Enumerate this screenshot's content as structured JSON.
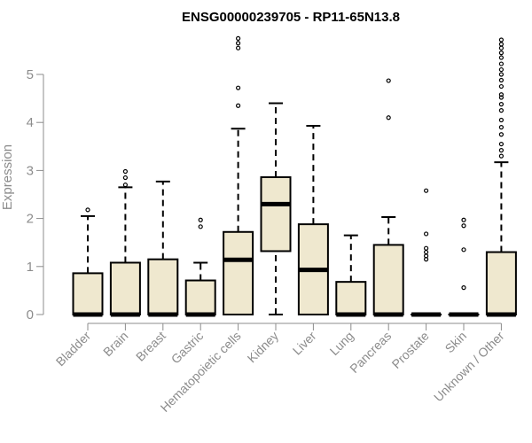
{
  "chart_data": {
    "type": "boxplot",
    "title": "ENSG00000239705 - RP11-65N13.8",
    "xlabel": "",
    "ylabel": "Expression",
    "ylim": [
      0,
      5.8
    ],
    "yticks": [
      0,
      1,
      2,
      3,
      4,
      5
    ],
    "box_fill": "#efe8cf",
    "categories": [
      "Bladder",
      "Brain",
      "Breast",
      "Gastric",
      "Hematopoietic cells",
      "Kidney",
      "Liver",
      "Lung",
      "Pancreas",
      "Prostate",
      "Skin",
      "Unknown / Other"
    ],
    "boxes": [
      {
        "name": "Bladder",
        "whisker_low": 0,
        "q1": 0,
        "median": 0,
        "q3": 0.86,
        "whisker_high": 2.05,
        "outliers": [
          2.18
        ]
      },
      {
        "name": "Brain",
        "whisker_low": 0,
        "q1": 0,
        "median": 0,
        "q3": 1.08,
        "whisker_high": 2.65,
        "outliers": [
          2.7,
          2.85,
          2.98
        ]
      },
      {
        "name": "Breast",
        "whisker_low": 0,
        "q1": 0,
        "median": 0,
        "q3": 1.15,
        "whisker_high": 2.77,
        "outliers": []
      },
      {
        "name": "Gastric",
        "whisker_low": 0,
        "q1": 0,
        "median": 0,
        "q3": 0.71,
        "whisker_high": 1.08,
        "outliers": [
          1.83,
          1.97
        ]
      },
      {
        "name": "Hematopoietic cells",
        "whisker_low": 0,
        "q1": 0,
        "median": 1.14,
        "q3": 1.72,
        "whisker_high": 3.87,
        "outliers": [
          4.35,
          4.72,
          5.55,
          5.65,
          5.75
        ]
      },
      {
        "name": "Kidney",
        "whisker_low": 0,
        "q1": 1.32,
        "median": 2.3,
        "q3": 2.86,
        "whisker_high": 4.4,
        "outliers": []
      },
      {
        "name": "Liver",
        "whisker_low": 0,
        "q1": 0,
        "median": 0.93,
        "q3": 1.88,
        "whisker_high": 3.93,
        "outliers": []
      },
      {
        "name": "Lung",
        "whisker_low": 0,
        "q1": 0,
        "median": 0,
        "q3": 0.68,
        "whisker_high": 1.65,
        "outliers": []
      },
      {
        "name": "Pancreas",
        "whisker_low": 0,
        "q1": 0,
        "median": 0,
        "q3": 1.45,
        "whisker_high": 2.03,
        "outliers": [
          4.1,
          4.87
        ]
      },
      {
        "name": "Prostate",
        "whisker_low": 0,
        "q1": 0,
        "median": 0,
        "q3": 0,
        "whisker_high": 0,
        "outliers": [
          1.15,
          1.22,
          1.3,
          1.38,
          1.68,
          2.58
        ]
      },
      {
        "name": "Skin",
        "whisker_low": 0,
        "q1": 0,
        "median": 0,
        "q3": 0,
        "whisker_high": 0,
        "outliers": [
          0.56,
          1.35,
          1.85,
          1.97
        ]
      },
      {
        "name": "Unknown / Other",
        "whisker_low": 0,
        "q1": 0,
        "median": 0,
        "q3": 1.3,
        "whisker_high": 3.17,
        "outliers": [
          3.3,
          3.42,
          3.55,
          3.75,
          3.9,
          4.05,
          4.25,
          4.38,
          4.52,
          4.58,
          4.75,
          4.88,
          5.0,
          5.1,
          5.22,
          5.35,
          5.45,
          5.55,
          5.63,
          5.72
        ]
      }
    ]
  }
}
